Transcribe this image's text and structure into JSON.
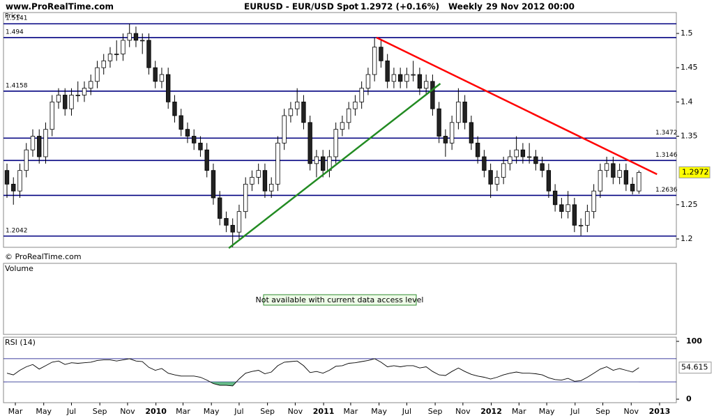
{
  "header": {
    "site": "www.ProRealTime.com",
    "symbol": "EURUSD - EUR/USD Spot",
    "quote": "1.2972 (+0.16%)",
    "period": "Weekly",
    "datetime": "29 Nov 2012 00:00"
  },
  "chart_data": [
    {
      "type": "candlestick",
      "panel_label": "Price",
      "copyright": "© ProRealTime.com",
      "ylim": [
        1.1878,
        1.5305
      ],
      "yticks": [
        1.2,
        1.25,
        1.35,
        1.4,
        1.45,
        1.5
      ],
      "xlim": [
        -0.54,
        103.8
      ],
      "xticks": [
        {
          "value": 1.3,
          "label": "Mar"
        },
        {
          "value": 5.7,
          "label": "May"
        },
        {
          "value": 10,
          "label": "Jul"
        },
        {
          "value": 14.4,
          "label": "Sep"
        },
        {
          "value": 18.7,
          "label": "Nov"
        },
        {
          "value": 23.1,
          "label": "2010"
        },
        {
          "value": 27.3,
          "label": "Mar"
        },
        {
          "value": 31.7,
          "label": "May"
        },
        {
          "value": 36,
          "label": "Jul"
        },
        {
          "value": 40.4,
          "label": "Sep"
        },
        {
          "value": 44.7,
          "label": "Nov"
        },
        {
          "value": 49.1,
          "label": "2011"
        },
        {
          "value": 53.3,
          "label": "Mar"
        },
        {
          "value": 57.7,
          "label": "May"
        },
        {
          "value": 62,
          "label": "Jul"
        },
        {
          "value": 66.4,
          "label": "Sep"
        },
        {
          "value": 70.7,
          "label": "Nov"
        },
        {
          "value": 75.1,
          "label": "2012"
        },
        {
          "value": 79.4,
          "label": "Mar"
        },
        {
          "value": 83.7,
          "label": "May"
        },
        {
          "value": 88.1,
          "label": "Jul"
        },
        {
          "value": 92.4,
          "label": "Sep"
        },
        {
          "value": 96.8,
          "label": "Nov"
        },
        {
          "value": 101.2,
          "label": "2013"
        }
      ],
      "level_color": "#000080",
      "levels": [
        {
          "value": 1.5141,
          "side": "left"
        },
        {
          "value": 1.494,
          "side": "left"
        },
        {
          "value": 1.4158,
          "side": "left"
        },
        {
          "value": 1.3472,
          "side": "right"
        },
        {
          "value": 1.3146,
          "side": "right"
        },
        {
          "value": 1.2636,
          "side": "right"
        },
        {
          "value": 1.2042,
          "side": "left"
        }
      ],
      "trendlines": [
        {
          "color": "#ff0000",
          "points": [
            [
              57.3,
              1.494
            ],
            [
              100.8,
              1.2945
            ]
          ]
        },
        {
          "color": "#228b22",
          "points": [
            [
              34.4,
              1.1867
            ],
            [
              67.2,
              1.4268
            ]
          ]
        }
      ],
      "last_price": 1.2972,
      "last_price_color": "#ffff00",
      "candles": [
        [
          1.3,
          1.31,
          1.26,
          1.28
        ],
        [
          1.28,
          1.29,
          1.25,
          1.27
        ],
        [
          1.27,
          1.31,
          1.26,
          1.3
        ],
        [
          1.3,
          1.34,
          1.29,
          1.33
        ],
        [
          1.33,
          1.36,
          1.32,
          1.35
        ],
        [
          1.35,
          1.36,
          1.31,
          1.32
        ],
        [
          1.32,
          1.37,
          1.31,
          1.36
        ],
        [
          1.36,
          1.41,
          1.35,
          1.4
        ],
        [
          1.4,
          1.42,
          1.39,
          1.41
        ],
        [
          1.41,
          1.42,
          1.38,
          1.39
        ],
        [
          1.39,
          1.42,
          1.38,
          1.41
        ],
        [
          1.41,
          1.43,
          1.4,
          1.41
        ],
        [
          1.41,
          1.43,
          1.4,
          1.42
        ],
        [
          1.42,
          1.44,
          1.41,
          1.43
        ],
        [
          1.43,
          1.46,
          1.42,
          1.45
        ],
        [
          1.45,
          1.47,
          1.44,
          1.46
        ],
        [
          1.46,
          1.48,
          1.45,
          1.47
        ],
        [
          1.47,
          1.49,
          1.46,
          1.47
        ],
        [
          1.47,
          1.5,
          1.46,
          1.49
        ],
        [
          1.49,
          1.5141,
          1.48,
          1.5
        ],
        [
          1.5,
          1.51,
          1.48,
          1.49
        ],
        [
          1.49,
          1.5,
          1.47,
          1.49
        ],
        [
          1.49,
          1.5,
          1.44,
          1.45
        ],
        [
          1.45,
          1.46,
          1.42,
          1.43
        ],
        [
          1.43,
          1.45,
          1.42,
          1.44
        ],
        [
          1.44,
          1.45,
          1.39,
          1.4
        ],
        [
          1.4,
          1.41,
          1.37,
          1.38
        ],
        [
          1.38,
          1.39,
          1.35,
          1.36
        ],
        [
          1.36,
          1.37,
          1.34,
          1.35
        ],
        [
          1.35,
          1.36,
          1.33,
          1.34
        ],
        [
          1.34,
          1.35,
          1.32,
          1.33
        ],
        [
          1.33,
          1.34,
          1.29,
          1.3
        ],
        [
          1.3,
          1.31,
          1.25,
          1.26
        ],
        [
          1.26,
          1.27,
          1.22,
          1.23
        ],
        [
          1.23,
          1.24,
          1.21,
          1.22
        ],
        [
          1.22,
          1.23,
          1.188,
          1.21
        ],
        [
          1.21,
          1.25,
          1.2,
          1.24
        ],
        [
          1.24,
          1.29,
          1.23,
          1.28
        ],
        [
          1.28,
          1.3,
          1.27,
          1.29
        ],
        [
          1.29,
          1.31,
          1.28,
          1.3
        ],
        [
          1.3,
          1.31,
          1.26,
          1.27
        ],
        [
          1.27,
          1.29,
          1.26,
          1.28
        ],
        [
          1.28,
          1.35,
          1.27,
          1.34
        ],
        [
          1.34,
          1.39,
          1.33,
          1.38
        ],
        [
          1.38,
          1.4,
          1.37,
          1.39
        ],
        [
          1.39,
          1.42,
          1.38,
          1.4
        ],
        [
          1.4,
          1.41,
          1.36,
          1.37
        ],
        [
          1.37,
          1.38,
          1.3,
          1.31
        ],
        [
          1.31,
          1.33,
          1.29,
          1.32
        ],
        [
          1.32,
          1.33,
          1.29,
          1.3
        ],
        [
          1.3,
          1.33,
          1.29,
          1.32
        ],
        [
          1.32,
          1.37,
          1.31,
          1.36
        ],
        [
          1.36,
          1.38,
          1.35,
          1.37
        ],
        [
          1.37,
          1.4,
          1.36,
          1.39
        ],
        [
          1.39,
          1.41,
          1.38,
          1.4
        ],
        [
          1.4,
          1.43,
          1.39,
          1.42
        ],
        [
          1.42,
          1.45,
          1.41,
          1.44
        ],
        [
          1.44,
          1.494,
          1.43,
          1.48
        ],
        [
          1.48,
          1.49,
          1.45,
          1.46
        ],
        [
          1.46,
          1.47,
          1.42,
          1.43
        ],
        [
          1.43,
          1.45,
          1.42,
          1.44
        ],
        [
          1.44,
          1.45,
          1.42,
          1.43
        ],
        [
          1.43,
          1.45,
          1.42,
          1.44
        ],
        [
          1.44,
          1.46,
          1.43,
          1.44
        ],
        [
          1.44,
          1.45,
          1.41,
          1.42
        ],
        [
          1.42,
          1.44,
          1.41,
          1.43
        ],
        [
          1.43,
          1.44,
          1.38,
          1.39
        ],
        [
          1.39,
          1.4,
          1.34,
          1.35
        ],
        [
          1.35,
          1.36,
          1.32,
          1.34
        ],
        [
          1.34,
          1.38,
          1.33,
          1.37
        ],
        [
          1.37,
          1.42,
          1.36,
          1.4
        ],
        [
          1.4,
          1.41,
          1.36,
          1.37
        ],
        [
          1.37,
          1.38,
          1.33,
          1.34
        ],
        [
          1.34,
          1.35,
          1.31,
          1.32
        ],
        [
          1.32,
          1.33,
          1.29,
          1.3
        ],
        [
          1.3,
          1.31,
          1.26,
          1.28
        ],
        [
          1.28,
          1.3,
          1.27,
          1.29
        ],
        [
          1.29,
          1.32,
          1.28,
          1.31
        ],
        [
          1.31,
          1.33,
          1.3,
          1.32
        ],
        [
          1.32,
          1.35,
          1.31,
          1.33
        ],
        [
          1.33,
          1.34,
          1.31,
          1.32
        ],
        [
          1.32,
          1.34,
          1.31,
          1.32
        ],
        [
          1.32,
          1.33,
          1.3,
          1.31
        ],
        [
          1.31,
          1.32,
          1.29,
          1.3
        ],
        [
          1.3,
          1.31,
          1.26,
          1.27
        ],
        [
          1.27,
          1.28,
          1.24,
          1.25
        ],
        [
          1.25,
          1.26,
          1.23,
          1.24
        ],
        [
          1.24,
          1.27,
          1.23,
          1.25
        ],
        [
          1.25,
          1.26,
          1.21,
          1.22
        ],
        [
          1.22,
          1.23,
          1.205,
          1.22
        ],
        [
          1.22,
          1.25,
          1.21,
          1.24
        ],
        [
          1.24,
          1.28,
          1.23,
          1.27
        ],
        [
          1.27,
          1.31,
          1.26,
          1.3
        ],
        [
          1.3,
          1.32,
          1.29,
          1.31
        ],
        [
          1.31,
          1.32,
          1.28,
          1.29
        ],
        [
          1.29,
          1.31,
          1.28,
          1.3
        ],
        [
          1.3,
          1.31,
          1.27,
          1.28
        ],
        [
          1.28,
          1.29,
          1.265,
          1.27
        ],
        [
          1.27,
          1.3,
          1.266,
          1.2972
        ]
      ]
    },
    {
      "type": "volume",
      "panel_label": "Volume",
      "message": "Not available with current data access level"
    },
    {
      "type": "line",
      "panel_label": "RSI (14)",
      "color": "#000000",
      "fill_color": "#66bb88",
      "band_color": "#000080",
      "ylim": [
        -6,
        107.2
      ],
      "yticks": [
        0,
        100
      ],
      "bands": [
        30,
        70
      ],
      "last_value": 54.615,
      "values": [
        45,
        42,
        50,
        56,
        60,
        52,
        58,
        64,
        66,
        60,
        63,
        62,
        63,
        64,
        67,
        68,
        68,
        66,
        68,
        70,
        66,
        65,
        55,
        50,
        53,
        45,
        42,
        40,
        40,
        40,
        38,
        33,
        27,
        24,
        24,
        23,
        35,
        45,
        48,
        50,
        44,
        47,
        58,
        64,
        65,
        66,
        58,
        46,
        48,
        45,
        50,
        57,
        58,
        62,
        63,
        65,
        67,
        70,
        64,
        56,
        58,
        56,
        58,
        58,
        54,
        56,
        48,
        42,
        41,
        48,
        54,
        48,
        43,
        40,
        38,
        35,
        38,
        42,
        45,
        47,
        45,
        45,
        44,
        42,
        37,
        34,
        33,
        36,
        31,
        32,
        38,
        45,
        52,
        56,
        50,
        53,
        50,
        47,
        54.615
      ]
    }
  ]
}
